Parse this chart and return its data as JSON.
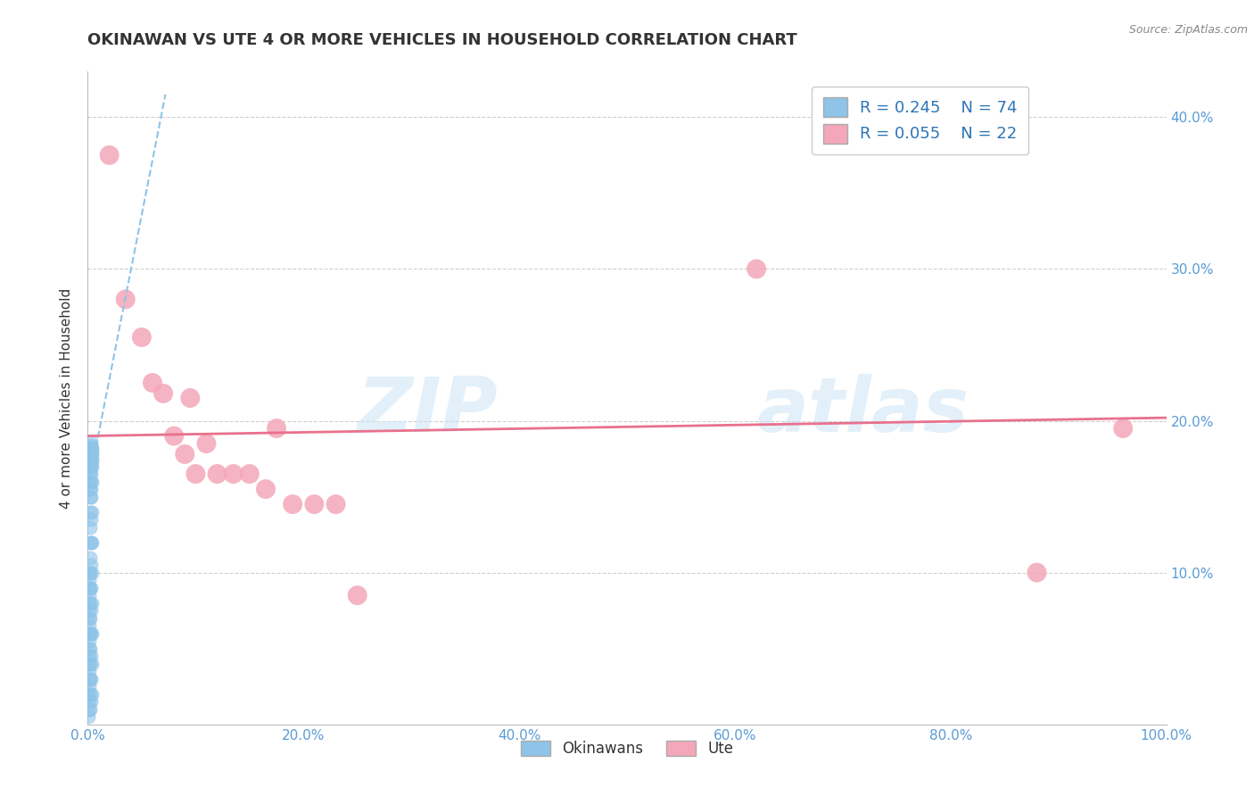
{
  "title": "OKINAWAN VS UTE 4 OR MORE VEHICLES IN HOUSEHOLD CORRELATION CHART",
  "source": "Source: ZipAtlas.com",
  "ylabel": "4 or more Vehicles in Household",
  "xlim": [
    0.0,
    1.0
  ],
  "ylim": [
    0.0,
    0.43
  ],
  "xticks": [
    0.0,
    0.2,
    0.4,
    0.6,
    0.8,
    1.0
  ],
  "xticklabels": [
    "0.0%",
    "20.0%",
    "40.0%",
    "60.0%",
    "80.0%",
    "100.0%"
  ],
  "ytick_vals": [
    0.1,
    0.2,
    0.3,
    0.4
  ],
  "yticklabels_right": [
    "10.0%",
    "20.0%",
    "30.0%",
    "40.0%"
  ],
  "legend_r1": "R = 0.245",
  "legend_n1": "N = 74",
  "legend_r2": "R = 0.055",
  "legend_n2": "N = 22",
  "legend_label1": "Okinawans",
  "legend_label2": "Ute",
  "blue_color": "#8ec4e8",
  "pink_color": "#f4a7b9",
  "blue_scatter_x": [
    0.0005,
    0.001,
    0.001,
    0.001,
    0.001,
    0.001,
    0.001,
    0.001,
    0.001,
    0.001,
    0.001,
    0.001,
    0.001,
    0.001,
    0.001,
    0.001,
    0.001,
    0.001,
    0.001,
    0.001,
    0.002,
    0.002,
    0.002,
    0.002,
    0.002,
    0.002,
    0.002,
    0.002,
    0.002,
    0.002,
    0.002,
    0.002,
    0.002,
    0.002,
    0.002,
    0.002,
    0.002,
    0.002,
    0.002,
    0.002,
    0.003,
    0.003,
    0.003,
    0.003,
    0.003,
    0.003,
    0.003,
    0.003,
    0.003,
    0.003,
    0.003,
    0.003,
    0.003,
    0.003,
    0.003,
    0.003,
    0.003,
    0.003,
    0.003,
    0.003,
    0.004,
    0.004,
    0.004,
    0.004,
    0.004,
    0.004,
    0.004,
    0.004,
    0.004,
    0.004,
    0.004,
    0.004,
    0.004,
    0.004
  ],
  "blue_scatter_y": [
    0.005,
    0.01,
    0.015,
    0.02,
    0.025,
    0.03,
    0.035,
    0.04,
    0.045,
    0.05,
    0.055,
    0.06,
    0.065,
    0.07,
    0.075,
    0.08,
    0.085,
    0.09,
    0.095,
    0.1,
    0.01,
    0.02,
    0.03,
    0.04,
    0.05,
    0.06,
    0.07,
    0.08,
    0.09,
    0.1,
    0.11,
    0.12,
    0.13,
    0.14,
    0.15,
    0.155,
    0.16,
    0.165,
    0.17,
    0.175,
    0.015,
    0.03,
    0.045,
    0.06,
    0.075,
    0.09,
    0.105,
    0.12,
    0.135,
    0.15,
    0.155,
    0.16,
    0.165,
    0.17,
    0.175,
    0.178,
    0.18,
    0.182,
    0.184,
    0.186,
    0.02,
    0.04,
    0.06,
    0.08,
    0.1,
    0.12,
    0.14,
    0.16,
    0.17,
    0.173,
    0.175,
    0.178,
    0.18,
    0.182
  ],
  "pink_scatter_x": [
    0.02,
    0.035,
    0.05,
    0.06,
    0.07,
    0.08,
    0.09,
    0.095,
    0.1,
    0.11,
    0.12,
    0.135,
    0.15,
    0.165,
    0.175,
    0.19,
    0.21,
    0.23,
    0.25,
    0.62,
    0.88,
    0.96
  ],
  "pink_scatter_y": [
    0.375,
    0.28,
    0.255,
    0.225,
    0.218,
    0.19,
    0.178,
    0.215,
    0.165,
    0.185,
    0.165,
    0.165,
    0.165,
    0.155,
    0.195,
    0.145,
    0.145,
    0.145,
    0.085,
    0.3,
    0.1,
    0.195
  ],
  "blue_trend_x0": 0.0005,
  "blue_trend_x1": 0.072,
  "blue_trend_y0": 0.157,
  "blue_trend_y1": 0.415,
  "pink_trend_x0": 0.0,
  "pink_trend_x1": 1.0,
  "pink_trend_y0": 0.19,
  "pink_trend_y1": 0.202,
  "watermark_line1": "ZIP",
  "watermark_line2": "atlas",
  "background_color": "#ffffff",
  "grid_color": "#d0d0d0",
  "title_color": "#333333",
  "axis_label_color": "#333333",
  "tick_label_color": "#5b9bd5",
  "legend_text_color": "#2e75b6",
  "ylabel_fontsize": 11,
  "title_fontsize": 13,
  "scatter_size_blue": 120,
  "scatter_size_pink": 250
}
